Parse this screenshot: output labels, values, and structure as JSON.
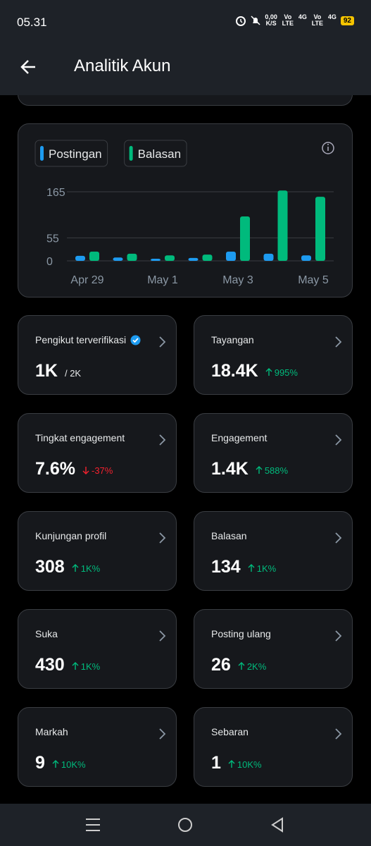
{
  "status_bar": {
    "time": "05.31",
    "net_speed": "0,00",
    "net_unit": "K/S",
    "indicators": [
      "Vo LTE",
      "4G",
      "Vo LTE",
      "4G"
    ],
    "battery": "92"
  },
  "header": {
    "title": "Analitik Akun"
  },
  "chart_data": {
    "type": "bar",
    "categories": [
      "Apr 29",
      null,
      "May 1",
      null,
      "May 3",
      null,
      "May 5"
    ],
    "series": [
      {
        "name": "Postingan",
        "color": "#1d9bf0",
        "values": [
          12,
          8,
          5,
          7,
          22,
          17,
          13
        ]
      },
      {
        "name": "Balasan",
        "color": "#00ba7c",
        "values": [
          22,
          17,
          13,
          15,
          106,
          168,
          153
        ]
      }
    ],
    "ylim": [
      0,
      170
    ],
    "yticks": [
      0,
      55,
      165
    ],
    "grid": true
  },
  "cards": [
    {
      "label": "Pengikut terverifikasi",
      "value": "1K",
      "suffix": "/ 2K",
      "verified": true
    },
    {
      "label": "Tayangan",
      "value": "18.4K",
      "change": "995%",
      "direction": "up"
    },
    {
      "label": "Tingkat engagement",
      "value": "7.6%",
      "change": "-37%",
      "direction": "down"
    },
    {
      "label": "Engagement",
      "value": "1.4K",
      "change": "588%",
      "direction": "up"
    },
    {
      "label": "Kunjungan profil",
      "value": "308",
      "change": "1K%",
      "direction": "up"
    },
    {
      "label": "Balasan",
      "value": "134",
      "change": "1K%",
      "direction": "up"
    },
    {
      "label": "Suka",
      "value": "430",
      "change": "1K%",
      "direction": "up"
    },
    {
      "label": "Posting ulang",
      "value": "26",
      "change": "2K%",
      "direction": "up"
    },
    {
      "label": "Markah",
      "value": "9",
      "change": "10K%",
      "direction": "up"
    },
    {
      "label": "Sebaran",
      "value": "1",
      "change": "10K%",
      "direction": "up"
    }
  ]
}
